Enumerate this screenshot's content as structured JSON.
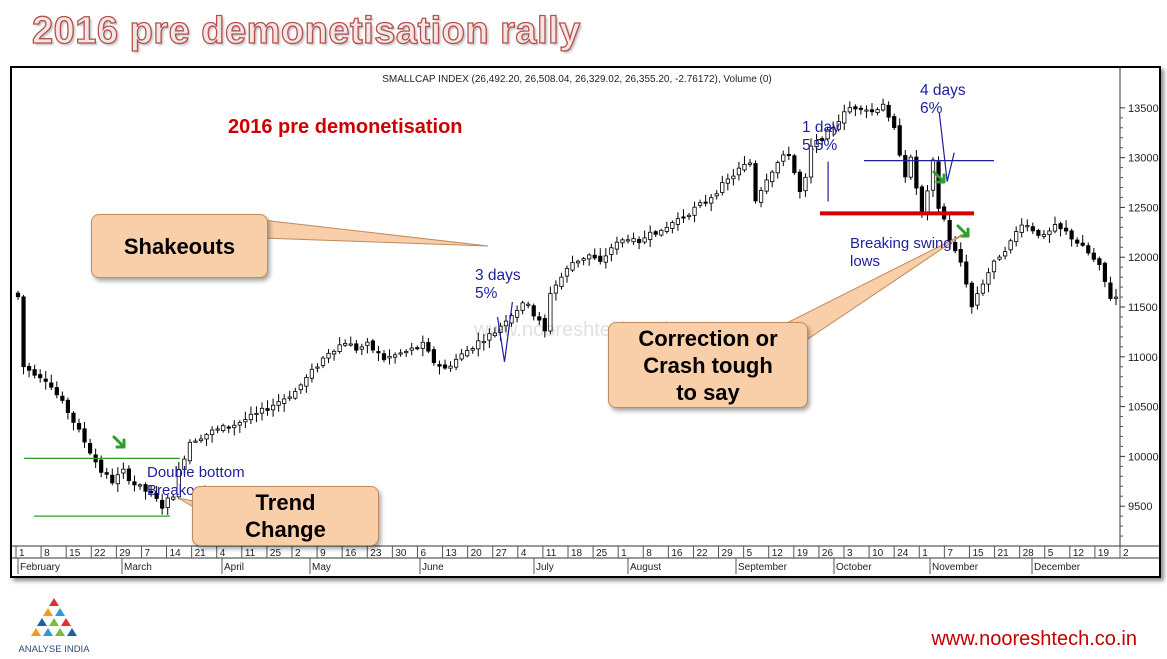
{
  "slide": {
    "title": "2016 pre demonetisation rally",
    "footer_url": "www.nooreshtech.co.in",
    "logo_text": "ANALYSE INDIA"
  },
  "colors": {
    "title_fill": "#f4e6e4",
    "title_outline": "#b5504d",
    "annotation_blue": "#1f1f9e",
    "annotation_red": "#cc0000",
    "support_green": "#2e9e2e",
    "resistance_red": "#d40000",
    "callout_fill": "#f9cfa9"
  },
  "chart_data": {
    "type": "candlestick",
    "header": "SMALLCAP INDEX (26,492.20, 26,508.04, 26,329.02, 26,355.20, -2.76172), Volume (0)",
    "chart_label": "2016 pre demonetisation",
    "watermark": "www.nooreshtech.co.in",
    "ylim": [
      9100,
      13850
    ],
    "y_ticks": [
      9500,
      10000,
      10500,
      11000,
      11500,
      12000,
      12500,
      13000,
      13500
    ],
    "x_day_ticks": [
      "1",
      "8",
      "15",
      "22",
      "29",
      "7",
      "14",
      "21",
      "4",
      "11",
      "25",
      "2",
      "9",
      "16",
      "23",
      "30",
      "6",
      "13",
      "20",
      "27",
      "4",
      "11",
      "18",
      "25",
      "1",
      "8",
      "16",
      "22",
      "29",
      "5",
      "12",
      "19",
      "26",
      "3",
      "10",
      "24",
      "1",
      "7",
      "15",
      "21",
      "28",
      "5",
      "12",
      "19",
      "2"
    ],
    "x_months": [
      "February",
      "March",
      "April",
      "May",
      "June",
      "July",
      "August",
      "September",
      "October",
      "November",
      "December"
    ],
    "price_path": [
      [
        1,
        10900
      ],
      [
        5,
        10780
      ],
      [
        9,
        10450
      ],
      [
        12,
        10150
      ],
      [
        15,
        9850
      ],
      [
        17,
        9750
      ],
      [
        19,
        9850
      ],
      [
        21,
        9720
      ],
      [
        24,
        9620
      ],
      [
        26,
        9500
      ],
      [
        28,
        9620
      ],
      [
        29,
        9850
      ],
      [
        31,
        10150
      ],
      [
        35,
        10250
      ],
      [
        39,
        10320
      ],
      [
        43,
        10420
      ],
      [
        46,
        10520
      ],
      [
        50,
        10650
      ],
      [
        53,
        10850
      ],
      [
        56,
        11050
      ],
      [
        59,
        11150
      ],
      [
        61,
        11080
      ],
      [
        63,
        11120
      ],
      [
        66,
        10980
      ],
      [
        70,
        11050
      ],
      [
        73,
        11120
      ],
      [
        75,
        10950
      ],
      [
        77,
        10880
      ],
      [
        80,
        11020
      ],
      [
        83,
        11150
      ],
      [
        86,
        11250
      ],
      [
        88,
        11380
      ],
      [
        90,
        11480
      ],
      [
        92,
        11550
      ],
      [
        93,
        11420
      ],
      [
        94,
        11350
      ],
      [
        95,
        11250
      ],
      [
        96,
        11650
      ],
      [
        98,
        11800
      ],
      [
        100,
        11950
      ],
      [
        103,
        12020
      ],
      [
        105,
        11940
      ],
      [
        107,
        12100
      ],
      [
        110,
        12200
      ],
      [
        112,
        12120
      ],
      [
        114,
        12280
      ],
      [
        116,
        12240
      ],
      [
        118,
        12350
      ],
      [
        121,
        12450
      ],
      [
        124,
        12560
      ],
      [
        127,
        12720
      ],
      [
        130,
        12880
      ],
      [
        132,
        12950
      ],
      [
        133,
        12580
      ],
      [
        135,
        12800
      ],
      [
        137,
        12950
      ],
      [
        139,
        13050
      ],
      [
        141,
        12650
      ],
      [
        142,
        12780
      ],
      [
        143,
        13100
      ],
      [
        146,
        13250
      ],
      [
        148,
        13380
      ],
      [
        150,
        13500
      ],
      [
        152,
        13520
      ],
      [
        154,
        13460
      ],
      [
        156,
        13550
      ],
      [
        157,
        13380
      ],
      [
        158,
        13280
      ],
      [
        159,
        13050
      ],
      [
        160,
        12830
      ],
      [
        161,
        12980
      ],
      [
        162,
        12700
      ],
      [
        163,
        12450
      ],
      [
        164,
        12640
      ],
      [
        165,
        12950
      ],
      [
        166,
        12500
      ],
      [
        167,
        12380
      ],
      [
        168,
        12150
      ],
      [
        170,
        11950
      ],
      [
        171,
        11750
      ],
      [
        172,
        11500
      ],
      [
        173,
        11640
      ],
      [
        175,
        11850
      ],
      [
        177,
        12020
      ],
      [
        179,
        12150
      ],
      [
        181,
        12350
      ],
      [
        183,
        12280
      ],
      [
        185,
        12200
      ],
      [
        187,
        12300
      ],
      [
        189,
        12250
      ],
      [
        191,
        12150
      ],
      [
        193,
        12040
      ],
      [
        195,
        11900
      ],
      [
        197,
        11600
      ]
    ],
    "annotations": [
      {
        "id": "one-day",
        "text": "1 day\n5.5%",
        "color": "blue"
      },
      {
        "id": "four-days",
        "text": "4 days\n6%",
        "color": "blue"
      },
      {
        "id": "three-days",
        "text": "3 days\n5%",
        "color": "blue"
      },
      {
        "id": "breaking-swing",
        "text": "Breaking swing\nlows",
        "color": "blue"
      },
      {
        "id": "double-bottom",
        "text": "Double bottom\nBreakout",
        "color": "blue"
      }
    ],
    "levels": [
      {
        "id": "double-bottom-resistance",
        "value": 9980,
        "color": "green"
      },
      {
        "id": "double-bottom-support",
        "value": 9400,
        "color": "green"
      },
      {
        "id": "swing-low-support",
        "value": 12440,
        "color": "red"
      },
      {
        "id": "four-day-level",
        "value": 12970,
        "color": "blue"
      }
    ]
  },
  "callouts": {
    "shakeouts": "Shakeouts",
    "trend_change": "Trend\nChange",
    "correction": "Correction or\nCrash tough\nto say"
  }
}
